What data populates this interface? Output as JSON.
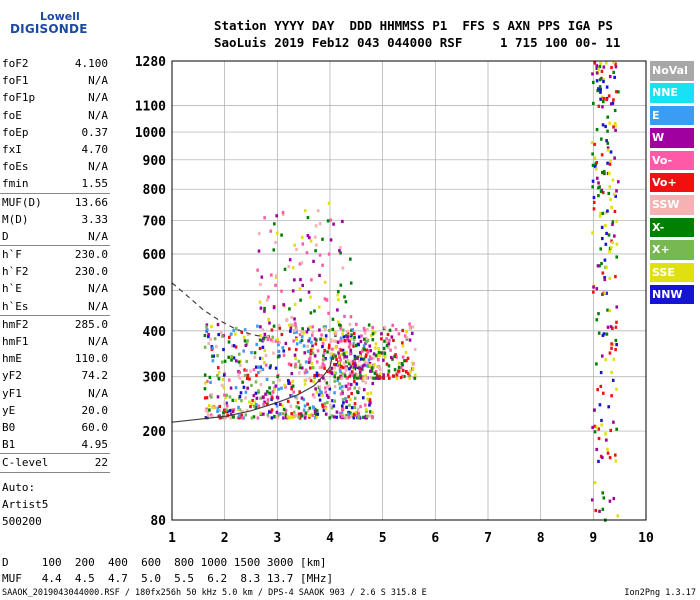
{
  "logo": {
    "line1": "Lowell",
    "line2": "DIGISONDE"
  },
  "header": {
    "line1": "Station YYYY DAY  DDD HHMMSS P1  FFS S AXN PPS IGA PS",
    "line2": "SaoLuis 2019 Feb12 043 044000 RSF     1 715 100 00- 11"
  },
  "params": [
    {
      "name": "foF2",
      "value": "4.100"
    },
    {
      "name": "foF1",
      "value": "N/A"
    },
    {
      "name": "foF1p",
      "value": "N/A"
    },
    {
      "name": "foE",
      "value": "N/A"
    },
    {
      "name": "foEp",
      "value": "0.37"
    },
    {
      "name": "fxI",
      "value": "4.70"
    },
    {
      "name": "foEs",
      "value": "N/A"
    },
    {
      "name": "fmin",
      "value": "1.55"
    },
    {
      "sep": true
    },
    {
      "name": "MUF(D)",
      "value": "13.66"
    },
    {
      "name": "M(D)",
      "value": "3.33"
    },
    {
      "name": "D",
      "value": "N/A"
    },
    {
      "sep": true
    },
    {
      "name": "h`F",
      "value": "230.0"
    },
    {
      "name": "h`F2",
      "value": "230.0"
    },
    {
      "name": "h`E",
      "value": "N/A"
    },
    {
      "name": "h`Es",
      "value": "N/A"
    },
    {
      "sep": true
    },
    {
      "name": "hmF2",
      "value": "285.0"
    },
    {
      "name": "hmF1",
      "value": "N/A"
    },
    {
      "name": "hmE",
      "value": "110.0"
    },
    {
      "name": "yF2",
      "value": "74.2"
    },
    {
      "name": "yF1",
      "value": "N/A"
    },
    {
      "name": "yE",
      "value": "20.0"
    },
    {
      "name": "B0",
      "value": "60.0"
    },
    {
      "name": "B1",
      "value": "4.95"
    },
    {
      "sep": true
    },
    {
      "name": "C-level",
      "value": "22"
    },
    {
      "sep": true
    }
  ],
  "auto": [
    "Auto:",
    "Artist5",
    "500200"
  ],
  "legend": [
    {
      "label": "NoVal",
      "color": "#a8a8a8"
    },
    {
      "label": "NNE",
      "color": "#19e0f2"
    },
    {
      "label": "E",
      "color": "#3a9cf2"
    },
    {
      "label": "W",
      "color": "#a000a0"
    },
    {
      "label": "Vo-",
      "color": "#ff5aa8"
    },
    {
      "label": "Vo+",
      "color": "#f01010"
    },
    {
      "label": "SSW",
      "color": "#f4b2b2"
    },
    {
      "label": "X-",
      "color": "#008000"
    },
    {
      "label": "X+",
      "color": "#78b850"
    },
    {
      "label": "SSE",
      "color": "#e0e010"
    },
    {
      "label": "NNW",
      "color": "#1414d2"
    }
  ],
  "bottom": {
    "line1": "D     100  200  400  600  800 1000 1500 3000 [km]",
    "line2": "MUF   4.4  4.5  4.7  5.0  5.5  6.2  8.3 13.7 [MHz]"
  },
  "footer": {
    "left": "SAAOK_2019043044000.RSF / 180fx256h 50 kHz 5.0 km / DPS-4 SAAOK 903 / 2.6 S 315.8 E",
    "right": "Ion2Png 1.3.17"
  },
  "chart_data": {
    "type": "scatter",
    "title": "",
    "xlabel": "",
    "ylabel": "",
    "xlim": [
      1,
      10
    ],
    "ylim": [
      80,
      1280
    ],
    "y_scale": "sqrt",
    "x_ticks": [
      1,
      2,
      3,
      4,
      5,
      6,
      7,
      8,
      9,
      10
    ],
    "y_ticks": [
      80,
      200,
      300,
      400,
      500,
      600,
      700,
      800,
      900,
      1000,
      1100,
      1280
    ],
    "grid": true,
    "legend_position": "right",
    "series": [
      {
        "name": "trace_O",
        "color": "#404040",
        "style": "solid",
        "x": [
          1.0,
          1.5,
          2.0,
          2.5,
          3.0,
          3.4,
          3.7,
          3.9,
          4.0,
          4.05
        ],
        "y": [
          215,
          220,
          225,
          235,
          250,
          265,
          282,
          305,
          320,
          345
        ]
      },
      {
        "name": "trace_X",
        "color": "#404040",
        "style": "dashed",
        "x": [
          1.0,
          1.3,
          1.6,
          1.9,
          2.2,
          2.5,
          2.8
        ],
        "y": [
          520,
          485,
          450,
          425,
          405,
          392,
          385
        ]
      }
    ],
    "echoes": [
      {
        "x": [
          1.6,
          4.8
        ],
        "y": [
          225,
          420
        ],
        "colors": [
          "#ff5aa8",
          "#a000a0",
          "#008000",
          "#f01010",
          "#e0e010",
          "#f4b2b2",
          "#1414d2",
          "#78b850",
          "#3a9cf2"
        ]
      },
      {
        "x": [
          4.0,
          5.6
        ],
        "y": [
          300,
          420
        ],
        "colors": [
          "#e0e010",
          "#ff5aa8",
          "#f4b2b2",
          "#a000a0",
          "#008000",
          "#f01010"
        ]
      },
      {
        "x": [
          2.6,
          4.4
        ],
        "y": [
          380,
          760
        ],
        "colors": [
          "#ff5aa8",
          "#a000a0",
          "#e0e010",
          "#008000",
          "#f4b2b2"
        ]
      },
      {
        "x": [
          8.95,
          9.45
        ],
        "y": [
          80,
          1280
        ],
        "colors": [
          "#1414d2",
          "#008000",
          "#a000a0",
          "#e0e010",
          "#f01010"
        ]
      }
    ]
  }
}
